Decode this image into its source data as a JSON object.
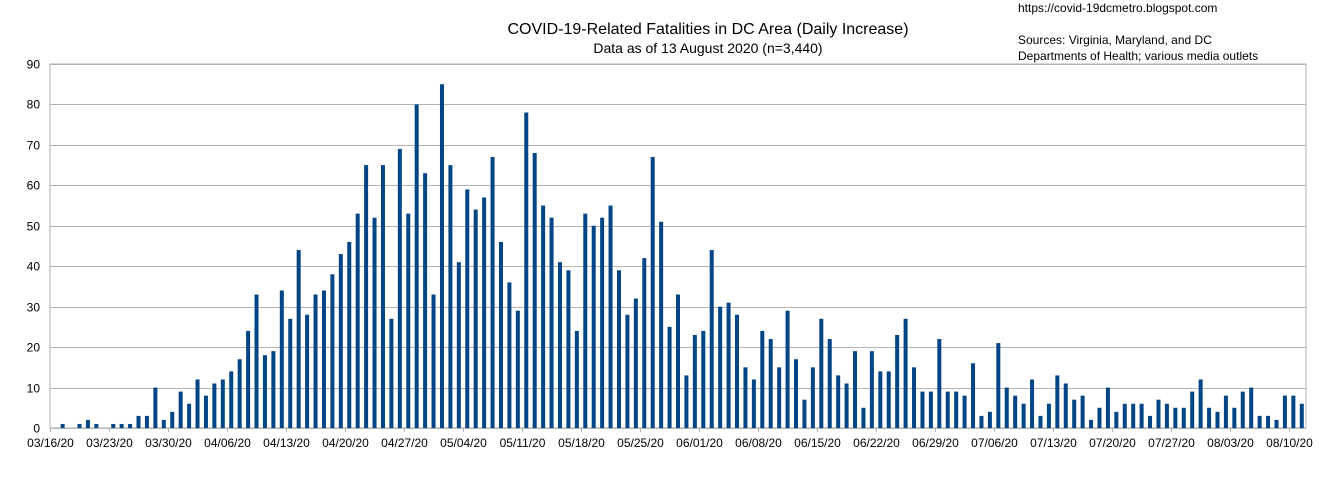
{
  "header": {
    "url": "https://covid-19dcmetro.blogspot.com",
    "sources_line1": "Sources: Virginia, Maryland, and DC",
    "sources_line2": "Departments of Health; various media outlets"
  },
  "colors": {
    "bar": "#004586",
    "grid": "#b3b3b3",
    "axis": "#b3b3b3"
  },
  "chart_data": {
    "type": "bar",
    "title": "COVID-19-Related Fatalities in DC Area (Daily Increase)",
    "subtitle": "Data as of 13 August 2020 (n=3,440)",
    "xlabel": "",
    "ylabel": "",
    "ylim": [
      0,
      90
    ],
    "yticks": [
      0,
      10,
      20,
      30,
      40,
      50,
      60,
      70,
      80,
      90
    ],
    "grid": true,
    "x_tick_labels": [
      "03/16/20",
      "03/23/20",
      "03/30/20",
      "04/06/20",
      "04/13/20",
      "04/20/20",
      "04/27/20",
      "05/04/20",
      "05/11/20",
      "05/18/20",
      "05/25/20",
      "06/01/20",
      "06/08/20",
      "06/15/20",
      "06/22/20",
      "06/29/20",
      "07/06/20",
      "07/13/20",
      "07/20/20",
      "07/27/20",
      "08/03/20",
      "08/10/20"
    ],
    "first_date": "03/16/20",
    "values": [
      0,
      1,
      0,
      1,
      2,
      1,
      0,
      1,
      1,
      1,
      3,
      3,
      10,
      2,
      4,
      9,
      6,
      12,
      8,
      11,
      12,
      14,
      17,
      24,
      33,
      18,
      19,
      34,
      27,
      44,
      28,
      33,
      34,
      38,
      43,
      46,
      53,
      65,
      52,
      65,
      27,
      69,
      53,
      80,
      63,
      33,
      85,
      65,
      41,
      59,
      54,
      57,
      67,
      46,
      36,
      29,
      78,
      68,
      55,
      52,
      41,
      39,
      24,
      53,
      50,
      52,
      55,
      39,
      28,
      32,
      42,
      67,
      51,
      25,
      33,
      13,
      23,
      24,
      44,
      30,
      31,
      28,
      15,
      12,
      24,
      22,
      15,
      29,
      17,
      7,
      15,
      27,
      22,
      13,
      11,
      19,
      5,
      19,
      14,
      14,
      23,
      27,
      15,
      9,
      9,
      22,
      9,
      9,
      8,
      16,
      3,
      4,
      21,
      10,
      8,
      6,
      12,
      3,
      6,
      13,
      11,
      7,
      8,
      2,
      5,
      10,
      4,
      6,
      6,
      6,
      3,
      7,
      6,
      5,
      5,
      9,
      12,
      5,
      4,
      8,
      5,
      9,
      10,
      3,
      3,
      2,
      8,
      8,
      6
    ]
  }
}
